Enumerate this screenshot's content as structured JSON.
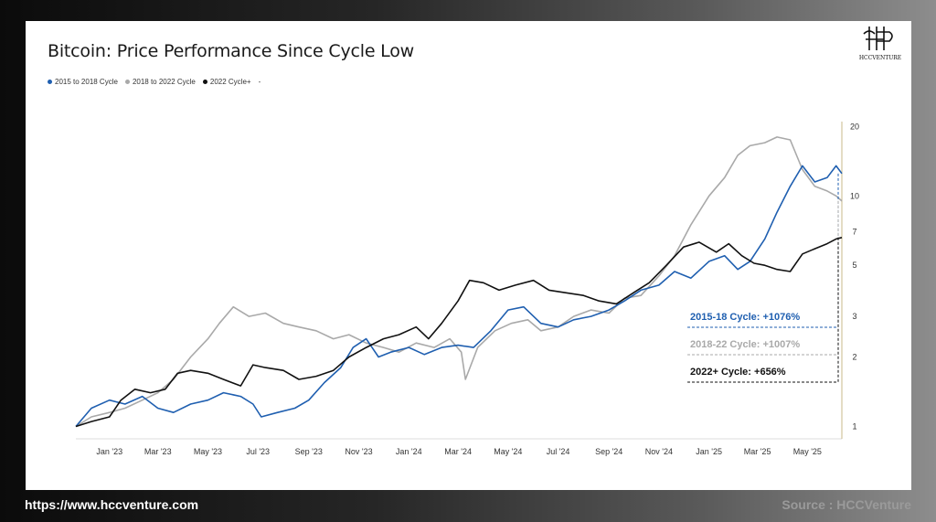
{
  "footer": {
    "url": "https://www.hccventure.com",
    "source": "Source : HCCVenture"
  },
  "logo": {
    "text": "HCCVENTURE"
  },
  "chart_data": {
    "type": "line",
    "title": "Bitcoin: Price Performance Since Cycle Low",
    "yscale": "log",
    "ylim": [
      0.9,
      21
    ],
    "y_ticks": [
      1,
      2,
      3,
      5,
      7,
      10,
      20
    ],
    "x_ticks": [
      "Jan '23",
      "Mar '23",
      "May '23",
      "Jul '23",
      "Sep '23",
      "Nov '23",
      "Jan '24",
      "Mar '24",
      "May '24",
      "Jul '24",
      "Sep '24",
      "Nov '24",
      "Jan '25",
      "Mar '25",
      "May '25"
    ],
    "legend": [
      "2015 to 2018 Cycle",
      "2018 to 2022 Cycle",
      "2022 Cycle+",
      "-"
    ],
    "colors": {
      "s2015": "#1f5fb0",
      "s2018": "#a9a9a9",
      "s2022": "#111111"
    },
    "series": [
      {
        "name": "2015 to 2018 Cycle",
        "x": [
          "2022-11-21",
          "2022-12-10",
          "2023-01-01",
          "2023-01-20",
          "2023-02-10",
          "2023-03-01",
          "2023-03-20",
          "2023-04-10",
          "2023-05-01",
          "2023-05-20",
          "2023-06-10",
          "2023-06-25",
          "2023-07-05",
          "2023-07-25",
          "2023-08-15",
          "2023-09-01",
          "2023-09-20",
          "2023-10-10",
          "2023-10-25",
          "2023-11-10",
          "2023-11-25",
          "2023-12-10",
          "2024-01-01",
          "2024-01-20",
          "2024-02-10",
          "2024-03-01",
          "2024-03-20",
          "2024-04-10",
          "2024-05-01",
          "2024-05-20",
          "2024-06-10",
          "2024-07-01",
          "2024-07-20",
          "2024-08-10",
          "2024-09-01",
          "2024-09-20",
          "2024-10-10",
          "2024-11-01",
          "2024-11-20",
          "2024-12-10",
          "2025-01-01",
          "2025-01-20",
          "2025-02-05",
          "2025-02-20",
          "2025-03-10",
          "2025-03-25",
          "2025-04-10",
          "2025-04-25",
          "2025-05-10",
          "2025-05-25",
          "2025-06-05",
          "2025-06-12"
        ],
        "values": [
          1.0,
          1.2,
          1.3,
          1.25,
          1.35,
          1.2,
          1.15,
          1.25,
          1.3,
          1.4,
          1.35,
          1.25,
          1.1,
          1.15,
          1.2,
          1.3,
          1.55,
          1.8,
          2.2,
          2.4,
          2.0,
          2.1,
          2.2,
          2.05,
          2.2,
          2.25,
          2.2,
          2.6,
          3.2,
          3.3,
          2.8,
          2.7,
          2.9,
          3.0,
          3.2,
          3.5,
          3.9,
          4.1,
          4.7,
          4.4,
          5.2,
          5.5,
          4.8,
          5.2,
          6.5,
          8.5,
          11.0,
          13.5,
          11.5,
          12.0,
          13.5,
          12.5
        ]
      },
      {
        "name": "2018 to 2022 Cycle",
        "x": [
          "2022-11-21",
          "2022-12-10",
          "2023-01-01",
          "2023-01-20",
          "2023-02-10",
          "2023-03-01",
          "2023-03-20",
          "2023-04-10",
          "2023-05-01",
          "2023-05-15",
          "2023-06-01",
          "2023-06-20",
          "2023-07-10",
          "2023-08-01",
          "2023-08-20",
          "2023-09-10",
          "2023-10-01",
          "2023-10-20",
          "2023-11-10",
          "2023-12-01",
          "2023-12-20",
          "2024-01-10",
          "2024-02-01",
          "2024-02-20",
          "2024-03-05",
          "2024-03-10",
          "2024-03-25",
          "2024-04-15",
          "2024-05-05",
          "2024-05-25",
          "2024-06-10",
          "2024-07-01",
          "2024-07-20",
          "2024-08-10",
          "2024-09-01",
          "2024-09-20",
          "2024-10-10",
          "2024-11-01",
          "2024-11-20",
          "2024-12-10",
          "2025-01-01",
          "2025-01-20",
          "2025-02-05",
          "2025-02-20",
          "2025-03-10",
          "2025-03-25",
          "2025-04-10",
          "2025-04-25",
          "2025-05-10",
          "2025-05-25",
          "2025-06-05",
          "2025-06-12"
        ],
        "values": [
          1.0,
          1.1,
          1.15,
          1.2,
          1.3,
          1.4,
          1.6,
          2.0,
          2.4,
          2.8,
          3.3,
          3.0,
          3.1,
          2.8,
          2.7,
          2.6,
          2.4,
          2.5,
          2.3,
          2.2,
          2.1,
          2.3,
          2.2,
          2.4,
          2.1,
          1.6,
          2.2,
          2.6,
          2.8,
          2.9,
          2.6,
          2.7,
          3.0,
          3.2,
          3.1,
          3.6,
          3.7,
          4.5,
          5.5,
          7.5,
          10.0,
          12.0,
          15.0,
          16.5,
          17.0,
          18.0,
          17.5,
          13.0,
          11.0,
          10.5,
          10.0,
          9.5
        ]
      },
      {
        "name": "2022 Cycle+",
        "x": [
          "2022-11-21",
          "2022-12-10",
          "2023-01-01",
          "2023-01-15",
          "2023-02-01",
          "2023-02-20",
          "2023-03-10",
          "2023-03-25",
          "2023-04-10",
          "2023-05-01",
          "2023-05-20",
          "2023-06-10",
          "2023-06-25",
          "2023-07-10",
          "2023-08-01",
          "2023-08-20",
          "2023-09-10",
          "2023-10-01",
          "2023-10-20",
          "2023-11-10",
          "2023-12-01",
          "2023-12-20",
          "2024-01-10",
          "2024-01-25",
          "2024-02-10",
          "2024-03-01",
          "2024-03-15",
          "2024-04-01",
          "2024-04-20",
          "2024-05-10",
          "2024-06-01",
          "2024-06-20",
          "2024-07-10",
          "2024-08-01",
          "2024-08-20",
          "2024-09-10",
          "2024-10-01",
          "2024-10-20",
          "2024-11-10",
          "2024-12-01",
          "2024-12-20",
          "2025-01-10",
          "2025-01-25",
          "2025-02-10",
          "2025-02-25",
          "2025-03-10",
          "2025-03-25",
          "2025-04-10",
          "2025-04-25",
          "2025-05-10",
          "2025-05-25",
          "2025-06-05",
          "2025-06-12"
        ],
        "values": [
          1.0,
          1.05,
          1.1,
          1.3,
          1.45,
          1.4,
          1.45,
          1.7,
          1.75,
          1.7,
          1.6,
          1.5,
          1.85,
          1.8,
          1.75,
          1.6,
          1.65,
          1.75,
          2.0,
          2.2,
          2.4,
          2.5,
          2.7,
          2.4,
          2.8,
          3.5,
          4.3,
          4.2,
          3.9,
          4.1,
          4.3,
          3.9,
          3.8,
          3.7,
          3.5,
          3.4,
          3.8,
          4.2,
          5.0,
          6.0,
          6.3,
          5.7,
          6.2,
          5.5,
          5.1,
          5.0,
          4.8,
          4.7,
          5.6,
          5.9,
          6.2,
          6.5,
          6.6
        ]
      }
    ],
    "annotations": [
      {
        "text": "2015-18 Cycle: +1076%",
        "color": "#1f5fb0"
      },
      {
        "text": "2018-22 Cycle: +1007%",
        "color": "#a9a9a9"
      },
      {
        "text": "2022+ Cycle: +656%",
        "color": "#111111"
      }
    ]
  }
}
